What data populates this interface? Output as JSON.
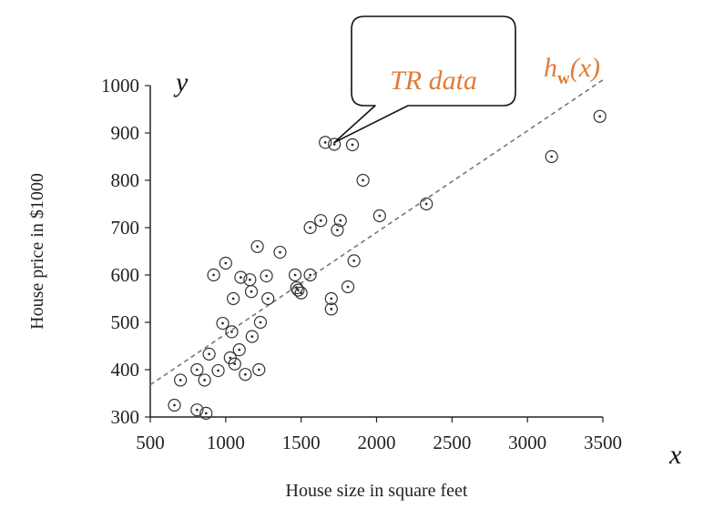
{
  "chart_data": {
    "type": "scatter",
    "xlabel": "House size in square feet",
    "ylabel": "House price in $1000",
    "xlim": [
      500,
      3500
    ],
    "ylim": [
      300,
      1000
    ],
    "x_ticks": [
      "500",
      "1000",
      "1500",
      "2000",
      "2500",
      "3000",
      "3500"
    ],
    "y_ticks": [
      "300",
      "400",
      "500",
      "600",
      "700",
      "800",
      "900",
      "1000"
    ],
    "x_var": "x",
    "y_var": "y",
    "annotation": "TR data",
    "line_label": {
      "h": "h",
      "sub": "w",
      "arg": "(x)"
    },
    "line": {
      "x": [
        500,
        3500
      ],
      "y": [
        368,
        1012
      ]
    },
    "colors": {
      "annotation": "#E07B39",
      "points": "#333333",
      "line": "#777777"
    },
    "points": [
      {
        "x": 660,
        "y": 325
      },
      {
        "x": 700,
        "y": 378
      },
      {
        "x": 810,
        "y": 400
      },
      {
        "x": 810,
        "y": 315
      },
      {
        "x": 860,
        "y": 378
      },
      {
        "x": 870,
        "y": 308
      },
      {
        "x": 890,
        "y": 433
      },
      {
        "x": 920,
        "y": 600
      },
      {
        "x": 950,
        "y": 398
      },
      {
        "x": 980,
        "y": 498
      },
      {
        "x": 1000,
        "y": 625
      },
      {
        "x": 1030,
        "y": 425
      },
      {
        "x": 1040,
        "y": 480
      },
      {
        "x": 1050,
        "y": 550
      },
      {
        "x": 1060,
        "y": 412
      },
      {
        "x": 1090,
        "y": 442
      },
      {
        "x": 1100,
        "y": 595
      },
      {
        "x": 1130,
        "y": 390
      },
      {
        "x": 1160,
        "y": 590
      },
      {
        "x": 1170,
        "y": 565
      },
      {
        "x": 1175,
        "y": 470
      },
      {
        "x": 1210,
        "y": 660
      },
      {
        "x": 1220,
        "y": 400
      },
      {
        "x": 1230,
        "y": 500
      },
      {
        "x": 1270,
        "y": 598
      },
      {
        "x": 1280,
        "y": 550
      },
      {
        "x": 1360,
        "y": 648
      },
      {
        "x": 1460,
        "y": 600
      },
      {
        "x": 1470,
        "y": 573
      },
      {
        "x": 1480,
        "y": 568
      },
      {
        "x": 1500,
        "y": 562
      },
      {
        "x": 1560,
        "y": 700
      },
      {
        "x": 1560,
        "y": 600
      },
      {
        "x": 1630,
        "y": 715
      },
      {
        "x": 1660,
        "y": 880
      },
      {
        "x": 1700,
        "y": 550
      },
      {
        "x": 1700,
        "y": 528
      },
      {
        "x": 1720,
        "y": 876
      },
      {
        "x": 1740,
        "y": 695
      },
      {
        "x": 1760,
        "y": 715
      },
      {
        "x": 1810,
        "y": 575
      },
      {
        "x": 1840,
        "y": 875
      },
      {
        "x": 1850,
        "y": 630
      },
      {
        "x": 1910,
        "y": 800
      },
      {
        "x": 2020,
        "y": 725
      },
      {
        "x": 2330,
        "y": 750
      },
      {
        "x": 3160,
        "y": 850
      },
      {
        "x": 3480,
        "y": 935
      }
    ]
  }
}
